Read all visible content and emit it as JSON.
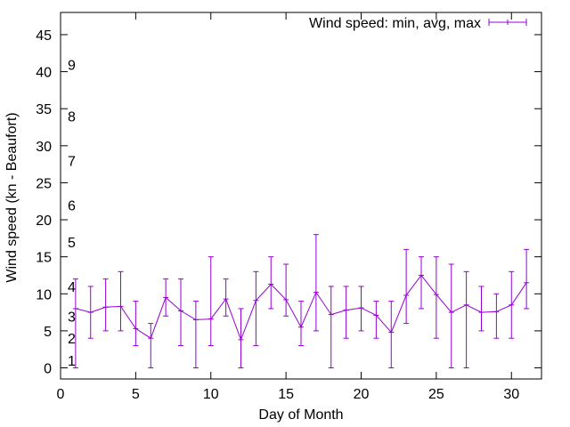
{
  "chart_data": {
    "type": "line",
    "xlabel": "Day of Month",
    "ylabel": "Wind speed (kn - Beaufort)",
    "xlim": [
      0,
      32
    ],
    "ylim": [
      -1.5,
      48
    ],
    "xticks": [
      0,
      5,
      10,
      15,
      20,
      25,
      30
    ],
    "yticks": [
      0,
      5,
      10,
      15,
      20,
      25,
      30,
      35,
      40,
      45
    ],
    "legend_position": "top-right",
    "grid": false,
    "series": [
      {
        "name": "Wind speed: min, avg, max",
        "color": "#9400d3",
        "style": "line with error bars",
        "x": [
          1,
          2,
          3,
          4,
          5,
          6,
          7,
          8,
          9,
          10,
          11,
          12,
          13,
          14,
          15,
          16,
          17,
          18,
          19,
          20,
          21,
          22,
          23,
          24,
          25,
          26,
          27,
          28,
          29,
          30,
          31
        ],
        "avg": [
          8,
          7.5,
          8.2,
          8.3,
          5.3,
          4,
          9.5,
          7.7,
          6.5,
          6.6,
          9.3,
          3.8,
          9.1,
          11.3,
          9.2,
          5.5,
          10.2,
          7.2,
          7.8,
          8.1,
          7.1,
          4.8,
          9.8,
          12.5,
          9.9,
          7.5,
          8.5,
          7.5,
          7.6,
          8.5,
          11.5
        ],
        "min": [
          0,
          4,
          5,
          5,
          3,
          0,
          7,
          3,
          0,
          3,
          7,
          0,
          3,
          8,
          7,
          3,
          5,
          0,
          4,
          5,
          4,
          0,
          6,
          8,
          4,
          0,
          0,
          5,
          4,
          4,
          8
        ],
        "max": [
          12,
          11,
          12,
          13,
          9,
          6,
          12,
          12,
          9,
          15,
          12,
          8,
          13,
          15,
          14,
          9,
          18,
          11,
          11,
          11,
          9,
          9,
          16,
          15,
          15,
          14,
          13,
          11,
          10,
          13,
          16
        ]
      }
    ],
    "annotations": [
      {
        "text": "1",
        "y": 1
      },
      {
        "text": "2",
        "y": 4
      },
      {
        "text": "3",
        "y": 7
      },
      {
        "text": "4",
        "y": 11
      },
      {
        "text": "5",
        "y": 17
      },
      {
        "text": "6",
        "y": 22
      },
      {
        "text": "7",
        "y": 28
      },
      {
        "text": "8",
        "y": 34
      },
      {
        "text": "9",
        "y": 41
      }
    ]
  }
}
